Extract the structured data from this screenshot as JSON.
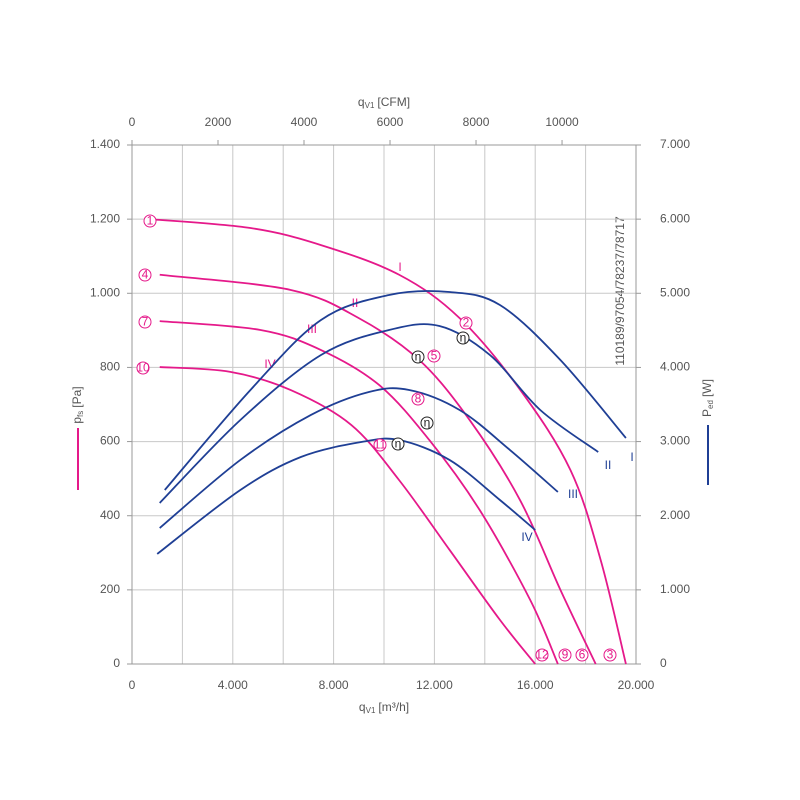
{
  "chart_data": {
    "type": "line",
    "x_label": {
      "main": "q",
      "sub": "V1",
      "unit": "[m³/h]"
    },
    "x2_label": {
      "main": "q",
      "sub": "V1",
      "unit": "[CFM]"
    },
    "y_label": {
      "main": "p",
      "sub": "fs",
      "unit": "[Pa]"
    },
    "y2_label": {
      "main": "P",
      "sub": "ed",
      "unit": "[W]"
    },
    "side_note": "110189/97054/78237/78717",
    "xlim": [
      0,
      20000
    ],
    "xticks": [
      0,
      {
        "value": 4000,
        "label": "4.000"
      },
      {
        "value": 8000,
        "label": "8.000"
      },
      {
        "value": 12000,
        "label": "12.000"
      },
      {
        "value": 16000,
        "label": "16.000"
      },
      {
        "value": 20000,
        "label": "20.000"
      }
    ],
    "x2lim": [
      0,
      11720
    ],
    "x2ticks": [
      0,
      2000,
      4000,
      6000,
      8000,
      10000
    ],
    "ylim": [
      0,
      1400
    ],
    "yticks": [
      0,
      200,
      400,
      600,
      800,
      {
        "value": 1000,
        "label": "1.000"
      },
      {
        "value": 1200,
        "label": "1.200"
      },
      {
        "value": 1400,
        "label": "1.400"
      }
    ],
    "y2lim": [
      0,
      7000
    ],
    "y2ticks": [
      0,
      {
        "value": 1000,
        "label": "1.000"
      },
      {
        "value": 2000,
        "label": "2.000"
      },
      {
        "value": 3000,
        "label": "3.000"
      },
      {
        "value": 4000,
        "label": "4.000"
      },
      {
        "value": 5000,
        "label": "5.000"
      },
      {
        "value": 6000,
        "label": "6.000"
      },
      {
        "value": 7000,
        "label": "7.000"
      }
    ],
    "grid": true,
    "series": [
      {
        "name": "I",
        "color": "#e5198a",
        "x": [
          700,
          4700,
          7500,
          10600,
          13000,
          15400,
          17400,
          18600,
          19600
        ],
        "values": [
          1200,
          1176,
          1130,
          1050,
          933,
          740,
          523,
          280,
          0
        ]
      },
      {
        "name": "II",
        "color": "#e5198a",
        "x": [
          1100,
          6300,
          9000,
          11400,
          13400,
          15400,
          17000,
          18400
        ],
        "values": [
          1050,
          1009,
          933,
          820,
          658,
          442,
          200,
          0
        ]
      },
      {
        "name": "III",
        "color": "#e5198a",
        "x": [
          1100,
          5100,
          7500,
          9800,
          11800,
          13800,
          15800,
          16900
        ],
        "values": [
          925,
          901,
          847,
          753,
          604,
          415,
          173,
          0
        ]
      },
      {
        "name": "IV",
        "color": "#e5198a",
        "x": [
          1100,
          3900,
          6300,
          8700,
          10600,
          12600,
          14600,
          16000
        ],
        "values": [
          801,
          788,
          739,
          645,
          496,
          308,
          119,
          0
        ]
      },
      {
        "name": "I",
        "color": "#1f3f95",
        "axis": "y2",
        "x": [
          1300,
          4700,
          7500,
          10200,
          12600,
          14600,
          17000,
          19600
        ],
        "values": [
          2347,
          3696,
          4640,
          4977,
          5017,
          4842,
          4100,
          3048
        ]
      },
      {
        "name": "II",
        "color": "#1f3f95",
        "axis": "y2",
        "x": [
          1100,
          4300,
          7500,
          10200,
          12200,
          14200,
          16200,
          18500
        ],
        "values": [
          2172,
          3291,
          4168,
          4505,
          4559,
          4168,
          3426,
          2859
        ]
      },
      {
        "name": "III",
        "color": "#1f3f95",
        "axis": "y2",
        "x": [
          1100,
          4300,
          7100,
          9400,
          11000,
          13000,
          15000,
          16900
        ],
        "values": [
          1834,
          2752,
          3359,
          3669,
          3696,
          3426,
          2886,
          2320
        ]
      },
      {
        "name": "IV",
        "color": "#1f3f95",
        "axis": "y2",
        "x": [
          1000,
          4300,
          6700,
          9100,
          10600,
          12600,
          14600,
          16000
        ],
        "values": [
          1484,
          2347,
          2792,
          2994,
          3021,
          2752,
          2212,
          1807
        ]
      }
    ],
    "annotations": [
      "1",
      "4",
      "7",
      "10",
      "2",
      "5",
      "8",
      "11",
      "3",
      "6",
      "9",
      "12",
      "η",
      "η",
      "η",
      "η"
    ]
  }
}
